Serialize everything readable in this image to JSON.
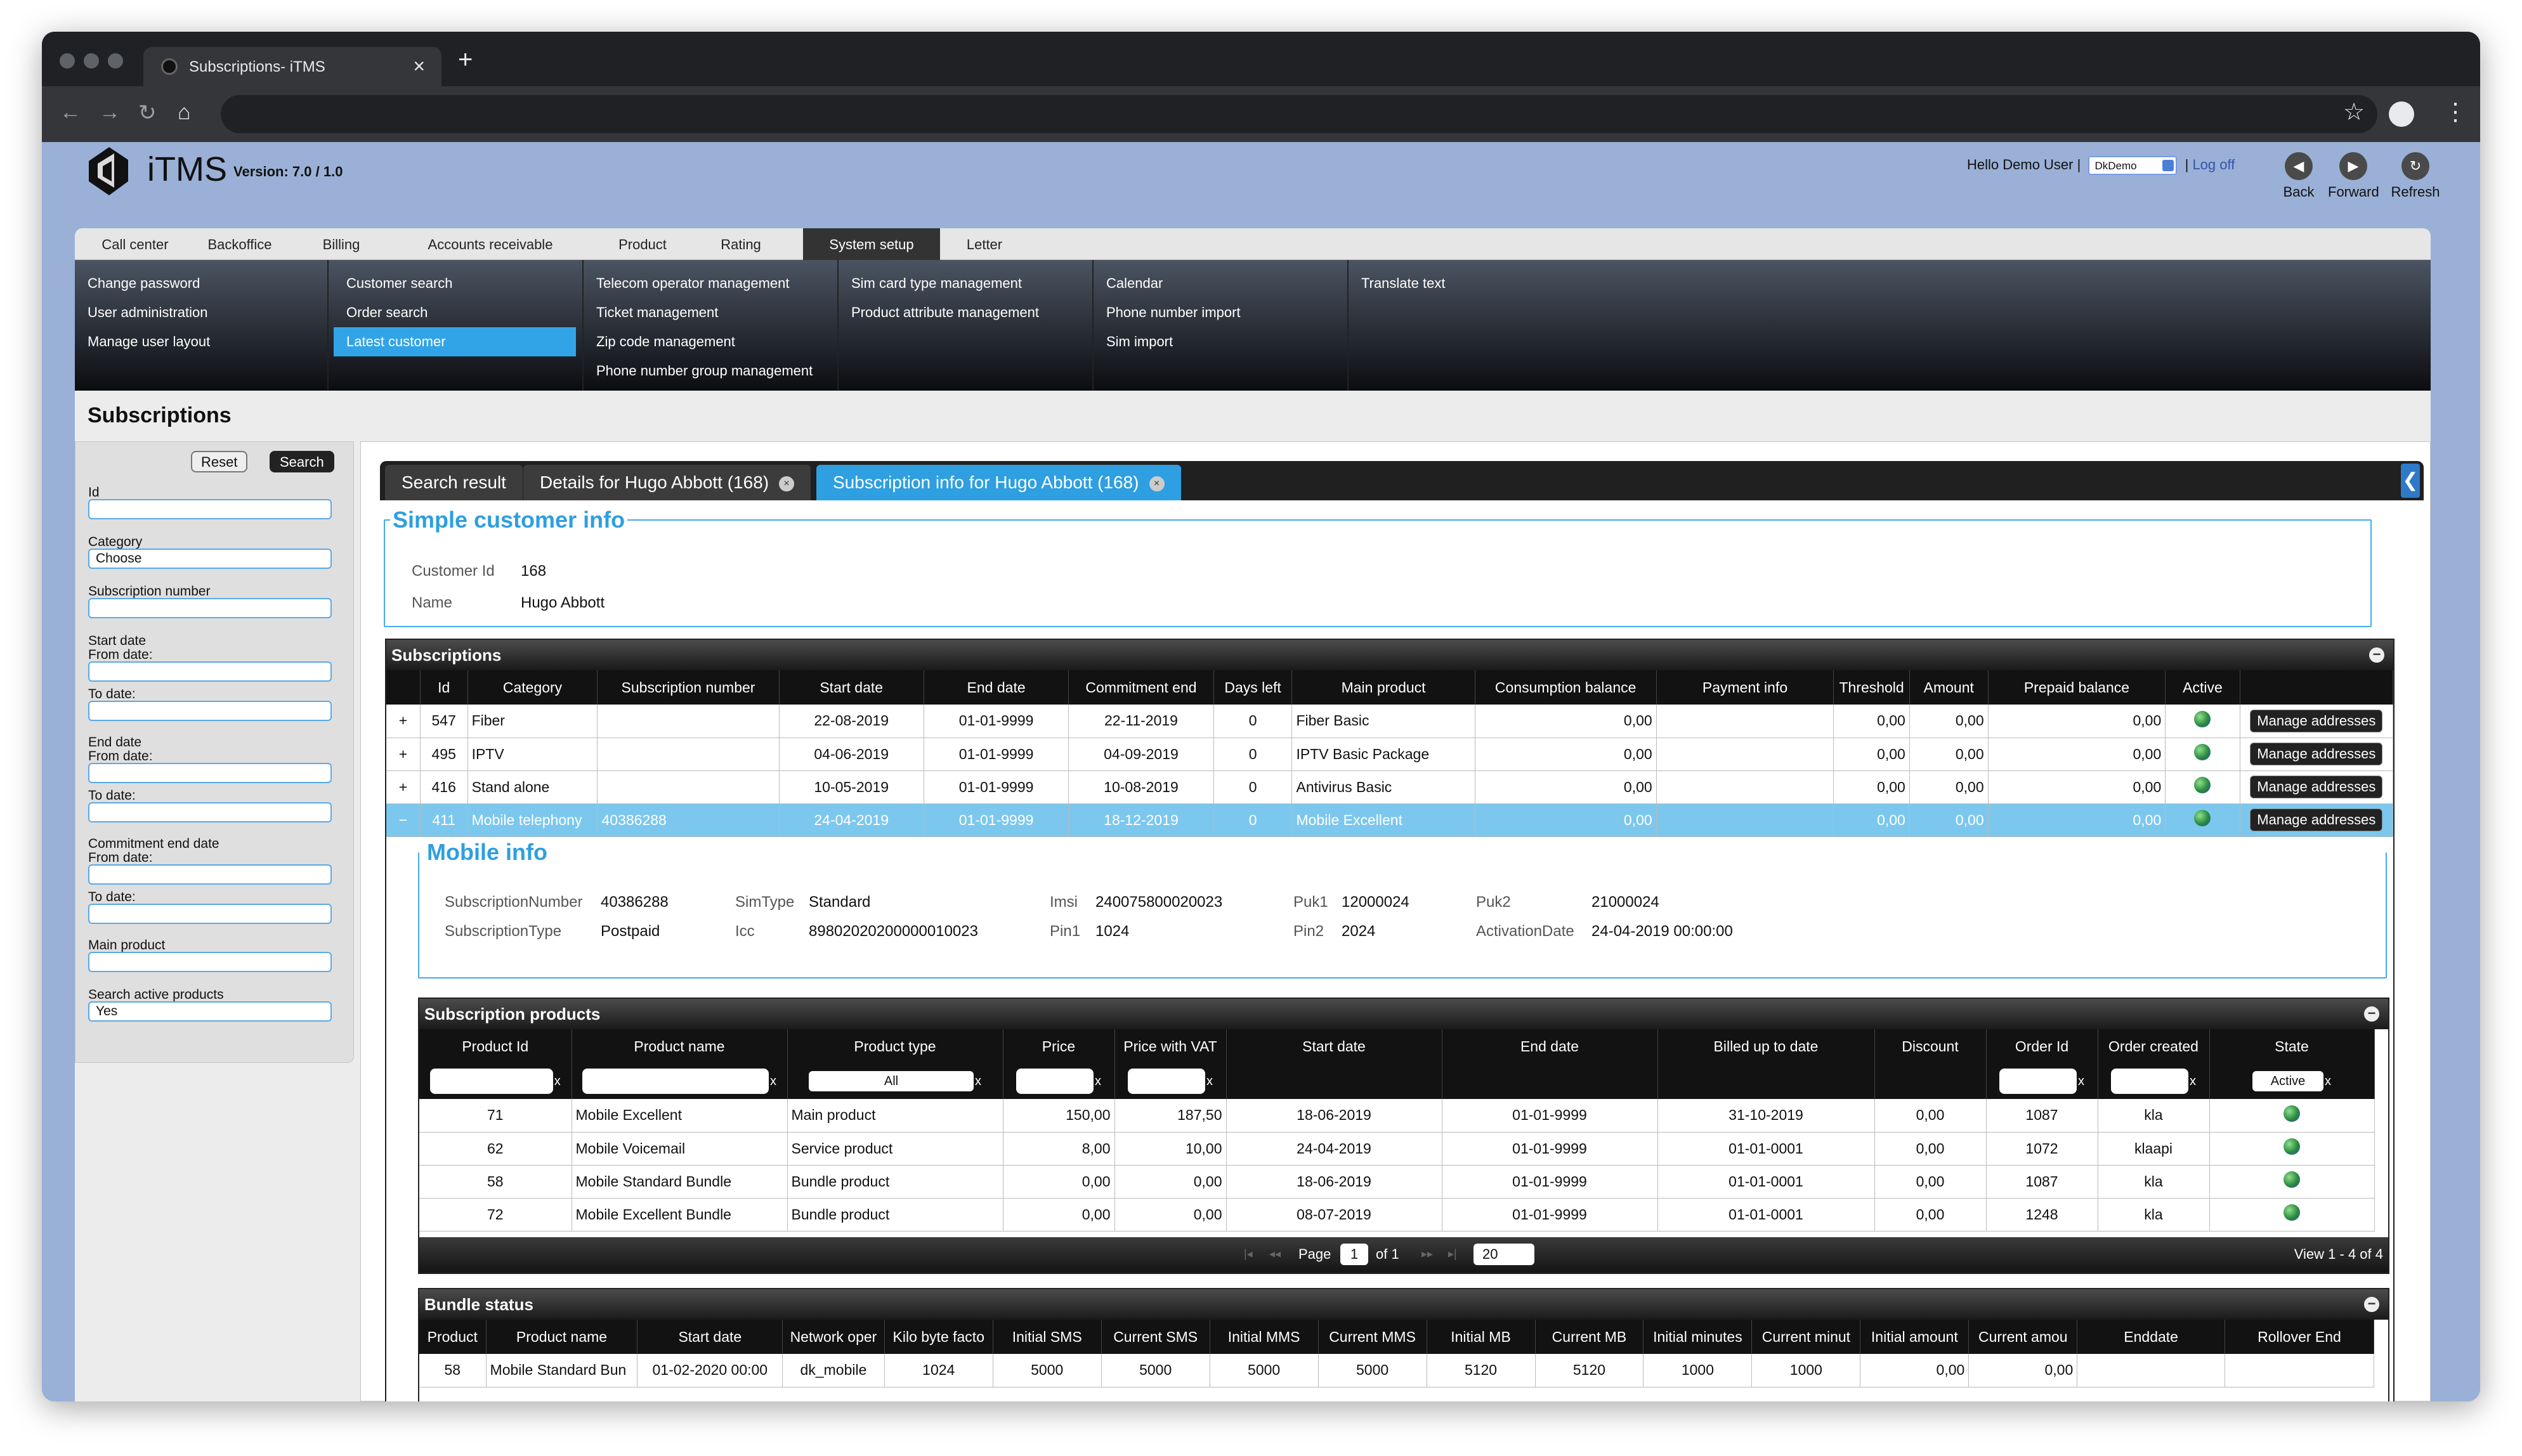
{
  "browser": {
    "tab_title": "Subscriptions- iTMS",
    "tab_close": "×",
    "new_tab": "+"
  },
  "app": {
    "logo_text": "iTMS",
    "version": "Version: 7.0 / 1.0",
    "greeting": "Hello Demo User",
    "separator": "|",
    "tenant": "DkDemo",
    "logoff": "Log off",
    "back": "Back",
    "forward": "Forward",
    "refresh": "Refresh"
  },
  "menu": {
    "tabs": [
      "Call center",
      "Backoffice",
      "Billing",
      "Accounts receivable",
      "Product",
      "Rating",
      "System setup",
      "Letter"
    ],
    "active_tab": "System setup"
  },
  "submenu": {
    "col1": [
      "Change password",
      "User administration",
      "Manage user layout"
    ],
    "col2": [
      "Customer search",
      "Order search",
      "Latest customer"
    ],
    "col3": [
      "Telecom operator management",
      "Ticket management",
      "Zip code management",
      "Phone number group management"
    ],
    "col4": [
      "Sim card type management",
      "Product attribute management"
    ],
    "col5": [
      "Calendar",
      "Phone number import",
      "Sim import"
    ],
    "col6": [
      "Translate text"
    ],
    "highlighted": "Latest customer"
  },
  "page": {
    "title": "Subscriptions"
  },
  "search": {
    "reset": "Reset",
    "search": "Search",
    "id_label": "Id",
    "category_label": "Category",
    "category_value": "Choose",
    "subnum_label": "Subscription number",
    "start_label": "Start date",
    "end_label": "End date",
    "commit_label": "Commitment end date",
    "from_label": "From date:",
    "to_label": "To date:",
    "mainprod_label": "Main product",
    "active_label": "Search active products",
    "active_value": "Yes"
  },
  "content_tabs": {
    "t1": "Search result",
    "t2": "Details for Hugo Abbott (168)",
    "t3": "Subscription info for Hugo Abbott (168)",
    "close": "×",
    "collapse": "❮"
  },
  "customer": {
    "legend": "Simple customer info",
    "id_label": "Customer Id",
    "id": "168",
    "name_label": "Name",
    "name": "Hugo Abbott"
  },
  "subscriptions": {
    "title": "Subscriptions",
    "collapse": "−",
    "columns": [
      "Id",
      "Category",
      "Subscription number",
      "Start date",
      "End date",
      "Commitment end",
      "Days left",
      "Main product",
      "Consumption balance",
      "Payment info",
      "Threshold",
      "Amount",
      "Prepaid balance",
      "Active",
      ""
    ],
    "button_label": "Manage addresses",
    "rows": [
      {
        "exp": "+",
        "id": "547",
        "category": "Fiber",
        "number": "",
        "start": "22-08-2019",
        "end": "01-01-9999",
        "commit": "22-11-2019",
        "days": "0",
        "product": "Fiber Basic",
        "consumption": "0,00",
        "payment": "",
        "threshold": "0,00",
        "amount": "0,00",
        "prepaid": "0,00"
      },
      {
        "exp": "+",
        "id": "495",
        "category": "IPTV",
        "number": "",
        "start": "04-06-2019",
        "end": "01-01-9999",
        "commit": "04-09-2019",
        "days": "0",
        "product": "IPTV Basic Package",
        "consumption": "0,00",
        "payment": "",
        "threshold": "0,00",
        "amount": "0,00",
        "prepaid": "0,00"
      },
      {
        "exp": "+",
        "id": "416",
        "category": "Stand alone",
        "number": "",
        "start": "10-05-2019",
        "end": "01-01-9999",
        "commit": "10-08-2019",
        "days": "0",
        "product": "Antivirus Basic",
        "consumption": "0,00",
        "payment": "",
        "threshold": "0,00",
        "amount": "0,00",
        "prepaid": "0,00"
      },
      {
        "exp": "−",
        "id": "411",
        "category": "Mobile telephony",
        "number": "40386288",
        "start": "24-04-2019",
        "end": "01-01-9999",
        "commit": "18-12-2019",
        "days": "0",
        "product": "Mobile Excellent",
        "consumption": "0,00",
        "payment": "",
        "threshold": "0,00",
        "amount": "0,00",
        "prepaid": "0,00"
      }
    ]
  },
  "mobile": {
    "legend": "Mobile info",
    "subnum_label": "SubscriptionNumber",
    "subnum": "40386288",
    "subtype_label": "SubscriptionType",
    "subtype": "Postpaid",
    "simtype_label": "SimType",
    "simtype": "Standard",
    "icc_label": "Icc",
    "icc": "89802020200000010023",
    "imsi_label": "Imsi",
    "imsi": "240075800020023",
    "pin1_label": "Pin1",
    "pin1": "1024",
    "puk1_label": "Puk1",
    "puk1": "12000024",
    "pin2_label": "Pin2",
    "pin2": "2024",
    "puk2_label": "Puk2",
    "puk2": "21000024",
    "activation_label": "ActivationDate",
    "activation": "24-04-2019 00:00:00"
  },
  "sub_products": {
    "title": "Subscription products",
    "collapse": "−",
    "columns": [
      "Product Id",
      "Product name",
      "Product type",
      "Price",
      "Price with VAT",
      "Start date",
      "End date",
      "Billed up to date",
      "Discount",
      "Order Id",
      "Order created",
      "State"
    ],
    "filter_type": "All",
    "filter_state": "Active",
    "filter_x": "x",
    "rows": [
      {
        "id": "71",
        "name": "Mobile Excellent",
        "type": "Main product",
        "price": "150,00",
        "vat": "187,50",
        "start": "18-06-2019",
        "end": "01-01-9999",
        "billed": "31-10-2019",
        "discount": "0,00",
        "order": "1087",
        "created": "kla"
      },
      {
        "id": "62",
        "name": "Mobile Voicemail",
        "type": "Service product",
        "price": "8,00",
        "vat": "10,00",
        "start": "24-04-2019",
        "end": "01-01-9999",
        "billed": "01-01-0001",
        "discount": "0,00",
        "order": "1072",
        "created": "klaapi"
      },
      {
        "id": "58",
        "name": "Mobile Standard Bundle",
        "type": "Bundle product",
        "price": "0,00",
        "vat": "0,00",
        "start": "18-06-2019",
        "end": "01-01-9999",
        "billed": "01-01-0001",
        "discount": "0,00",
        "order": "1087",
        "created": "kla"
      },
      {
        "id": "72",
        "name": "Mobile Excellent Bundle",
        "type": "Bundle product",
        "price": "0,00",
        "vat": "0,00",
        "start": "08-07-2019",
        "end": "01-01-9999",
        "billed": "01-01-0001",
        "discount": "0,00",
        "order": "1248",
        "created": "kla"
      }
    ],
    "pager": {
      "page_label": "Page",
      "page": "1",
      "of": "of 1",
      "size": "20",
      "view": "View 1 - 4 of 4"
    }
  },
  "bundle": {
    "title": "Bundle status",
    "collapse": "−",
    "columns": [
      "Product",
      "Product name",
      "Start date",
      "Network oper",
      "Kilo byte facto",
      "Initial SMS",
      "Current SMS",
      "Initial MMS",
      "Current MMS",
      "Initial MB",
      "Current MB",
      "Initial minutes",
      "Current minut",
      "Initial amount",
      "Current amou",
      "Enddate",
      "Rollover End"
    ],
    "rows": [
      {
        "product": "58",
        "name": "Mobile Standard Bun",
        "start": "01-02-2020 00:00",
        "network": "dk_mobile",
        "kb": "1024",
        "isms": "5000",
        "csms": "5000",
        "imms": "5000",
        "cmms": "5000",
        "imb": "5120",
        "cmb": "5120",
        "imin": "1000",
        "cmin": "1000",
        "iamt": "0,00",
        "camt": "0,00",
        "enddate": "",
        "rollover": ""
      }
    ]
  }
}
